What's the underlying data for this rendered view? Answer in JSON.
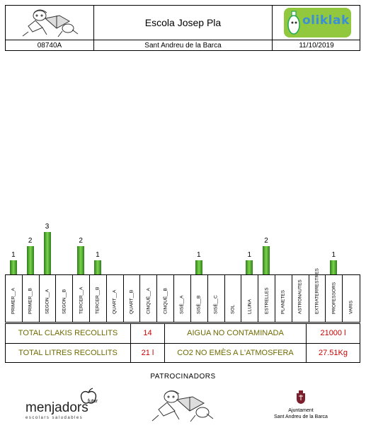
{
  "header": {
    "school_name": "Escola Josep Pla",
    "postal_code": "08740A",
    "town": "Sant Andreu de la Barca",
    "date": "11/10/2019",
    "brand_logo_text": "oliklak"
  },
  "chart_data": {
    "type": "bar",
    "categories": [
      "PRIMER__A",
      "PRIMER__B",
      "SEGON__A",
      "SEGON__B",
      "TERCER__A",
      "TERCER__B",
      "QUART__A",
      "QUART__B",
      "CINQUÈ__A",
      "CINQUÈ__B",
      "SISÈ__A",
      "SISÈ__B",
      "SISÈ__C",
      "SOL",
      "LLUNA",
      "ESTRELLES",
      "PLANETES",
      "ASTRONAUTES",
      "EXTRATERRESTRES",
      "PROFESSORS",
      "VARIS"
    ],
    "values": [
      1,
      2,
      3,
      null,
      2,
      1,
      null,
      null,
      null,
      null,
      null,
      1,
      null,
      null,
      1,
      2,
      null,
      null,
      null,
      1,
      null
    ],
    "colors": {
      "bar_dark": "#2e7d1e",
      "bar_light": "#7cd44a"
    }
  },
  "totals": {
    "clakis_label": "TOTAL CLAKIS RECOLLITS",
    "clakis_value": "14",
    "litres_label": "TOTAL LITRES RECOLLITS",
    "litres_value": "21 l",
    "water_label": "AIGUA NO CONTAMINADA",
    "water_value": "21000 l",
    "co2_label": "CO2 NO EMÈS A L'ATMOSFERA",
    "co2_value": "27.51Kg"
  },
  "sponsors": {
    "title": "PATROCINADORS",
    "menjadors_name": "menjadors",
    "menjadors_sub": "escolars saludables",
    "menjadors_tag": "futur",
    "council_line1": "Ajuntament",
    "council_line2": "Sant Andreu de la Barca"
  }
}
